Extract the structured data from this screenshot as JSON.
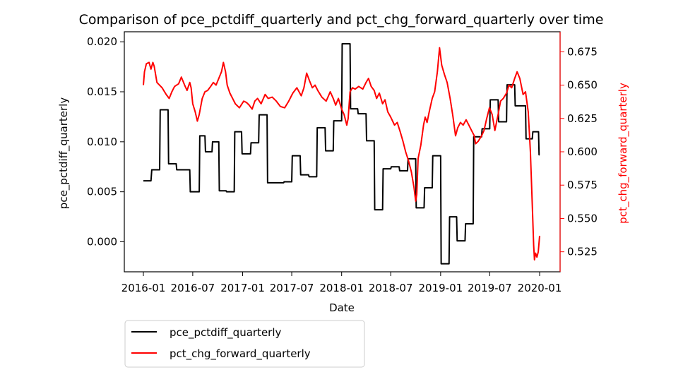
{
  "chart_data": {
    "type": "line",
    "title": "Comparison of pce_pctdiff_quarterly and pct_chg_forward_quarterly over time",
    "xlabel": "Date",
    "ylabel_left": "pce_pctdiff_quarterly",
    "ylabel_right": "pct_chg_forward_quarterly",
    "x_ticks": [
      "2016-01",
      "2016-07",
      "2017-01",
      "2017-07",
      "2018-01",
      "2018-07",
      "2019-01",
      "2019-07",
      "2020-01"
    ],
    "y_left_ticks": [
      "0.000",
      "0.005",
      "0.010",
      "0.015",
      "0.020"
    ],
    "y_right_ticks": [
      "0.525",
      "0.550",
      "0.575",
      "0.600",
      "0.625",
      "0.650",
      "0.675"
    ],
    "y_left_range": [
      -0.003,
      0.021
    ],
    "y_right_range": [
      0.51,
      0.69
    ],
    "legend_position": "below-left",
    "colors": {
      "left": "#000000",
      "right": "#ff0000"
    },
    "series": [
      {
        "name": "pce_pctdiff_quarterly",
        "axis": "left",
        "color": "#000000",
        "points": [
          [
            "2016-01-01",
            0.0061
          ],
          [
            "2016-01-29",
            0.0061
          ],
          [
            "2016-02-01",
            0.0072
          ],
          [
            "2016-03-01",
            0.0072
          ],
          [
            "2016-03-03",
            0.0132
          ],
          [
            "2016-04-01",
            0.0132
          ],
          [
            "2016-04-03",
            0.0078
          ],
          [
            "2016-05-01",
            0.0078
          ],
          [
            "2016-05-03",
            0.0072
          ],
          [
            "2016-06-20",
            0.0072
          ],
          [
            "2016-06-22",
            0.005
          ],
          [
            "2016-07-25",
            0.005
          ],
          [
            "2016-07-27",
            0.0106
          ],
          [
            "2016-08-15",
            0.0106
          ],
          [
            "2016-08-17",
            0.009
          ],
          [
            "2016-09-10",
            0.009
          ],
          [
            "2016-09-12",
            0.01
          ],
          [
            "2016-10-05",
            0.01
          ],
          [
            "2016-10-07",
            0.0051
          ],
          [
            "2016-11-01",
            0.0051
          ],
          [
            "2016-11-03",
            0.005
          ],
          [
            "2016-12-01",
            0.005
          ],
          [
            "2016-12-03",
            0.011
          ],
          [
            "2016-12-28",
            0.011
          ],
          [
            "2016-12-30",
            0.0088
          ],
          [
            "2017-01-30",
            0.0088
          ],
          [
            "2017-02-01",
            0.0099
          ],
          [
            "2017-03-01",
            0.0099
          ],
          [
            "2017-03-03",
            0.0127
          ],
          [
            "2017-04-01",
            0.0127
          ],
          [
            "2017-04-03",
            0.0059
          ],
          [
            "2017-06-01",
            0.0059
          ],
          [
            "2017-06-03",
            0.006
          ],
          [
            "2017-07-01",
            0.006
          ],
          [
            "2017-07-03",
            0.0086
          ],
          [
            "2017-08-01",
            0.0086
          ],
          [
            "2017-08-03",
            0.0067
          ],
          [
            "2017-09-01",
            0.0067
          ],
          [
            "2017-09-03",
            0.0065
          ],
          [
            "2017-10-01",
            0.0065
          ],
          [
            "2017-10-03",
            0.0114
          ],
          [
            "2017-11-01",
            0.0114
          ],
          [
            "2017-11-03",
            0.0091
          ],
          [
            "2017-12-01",
            0.0091
          ],
          [
            "2017-12-03",
            0.0121
          ],
          [
            "2018-01-01",
            0.0121
          ],
          [
            "2018-01-03",
            0.0198
          ],
          [
            "2018-02-01",
            0.0198
          ],
          [
            "2018-02-03",
            0.0133
          ],
          [
            "2018-03-01",
            0.0133
          ],
          [
            "2018-03-03",
            0.0128
          ],
          [
            "2018-04-01",
            0.0128
          ],
          [
            "2018-04-03",
            0.0101
          ],
          [
            "2018-05-01",
            0.0101
          ],
          [
            "2018-05-03",
            0.0032
          ],
          [
            "2018-06-01",
            0.0032
          ],
          [
            "2018-06-03",
            0.0073
          ],
          [
            "2018-07-01",
            0.0073
          ],
          [
            "2018-07-03",
            0.0075
          ],
          [
            "2018-08-01",
            0.0075
          ],
          [
            "2018-08-03",
            0.0071
          ],
          [
            "2018-09-01",
            0.0071
          ],
          [
            "2018-09-03",
            0.0083
          ],
          [
            "2018-10-01",
            0.0083
          ],
          [
            "2018-10-03",
            0.0034
          ],
          [
            "2018-11-01",
            0.0034
          ],
          [
            "2018-11-03",
            0.0054
          ],
          [
            "2018-12-01",
            0.0054
          ],
          [
            "2018-12-03",
            0.0086
          ],
          [
            "2019-01-01",
            0.0086
          ],
          [
            "2019-01-03",
            -0.0022
          ],
          [
            "2019-02-01",
            -0.0022
          ],
          [
            "2019-02-03",
            0.0025
          ],
          [
            "2019-03-01",
            0.0025
          ],
          [
            "2019-03-03",
            0.0001
          ],
          [
            "2019-04-01",
            0.0001
          ],
          [
            "2019-04-03",
            0.0018
          ],
          [
            "2019-05-01",
            0.0018
          ],
          [
            "2019-05-03",
            0.0105
          ],
          [
            "2019-06-01",
            0.0105
          ],
          [
            "2019-06-03",
            0.0113
          ],
          [
            "2019-07-01",
            0.0113
          ],
          [
            "2019-07-03",
            0.0142
          ],
          [
            "2019-08-01",
            0.0142
          ],
          [
            "2019-08-03",
            0.012
          ],
          [
            "2019-09-01",
            0.012
          ],
          [
            "2019-09-03",
            0.0157
          ],
          [
            "2019-10-01",
            0.0157
          ],
          [
            "2019-10-03",
            0.0136
          ],
          [
            "2019-11-10",
            0.0136
          ],
          [
            "2019-11-12",
            0.0103
          ],
          [
            "2019-12-05",
            0.0103
          ],
          [
            "2019-12-07",
            0.011
          ],
          [
            "2019-12-28",
            0.011
          ],
          [
            "2019-12-30",
            0.0087
          ],
          [
            "2020-01-01",
            0.0087
          ]
        ]
      },
      {
        "name": "pct_chg_forward_quarterly",
        "axis": "right",
        "color": "#ff0000",
        "points": [
          [
            "2016-01-01",
            0.65
          ],
          [
            "2016-01-05",
            0.66
          ],
          [
            "2016-01-12",
            0.666
          ],
          [
            "2016-01-22",
            0.667
          ],
          [
            "2016-01-29",
            0.662
          ],
          [
            "2016-02-05",
            0.667
          ],
          [
            "2016-02-10",
            0.664
          ],
          [
            "2016-02-20",
            0.652
          ],
          [
            "2016-03-10",
            0.648
          ],
          [
            "2016-03-25",
            0.643
          ],
          [
            "2016-04-05",
            0.64
          ],
          [
            "2016-04-15",
            0.645
          ],
          [
            "2016-04-25",
            0.649
          ],
          [
            "2016-05-10",
            0.651
          ],
          [
            "2016-05-20",
            0.656
          ],
          [
            "2016-06-01",
            0.65
          ],
          [
            "2016-06-10",
            0.646
          ],
          [
            "2016-06-20",
            0.652
          ],
          [
            "2016-06-25",
            0.648
          ],
          [
            "2016-07-01",
            0.636
          ],
          [
            "2016-07-10",
            0.63
          ],
          [
            "2016-07-18",
            0.623
          ],
          [
            "2016-07-25",
            0.628
          ],
          [
            "2016-08-05",
            0.64
          ],
          [
            "2016-08-15",
            0.645
          ],
          [
            "2016-08-25",
            0.646
          ],
          [
            "2016-09-05",
            0.649
          ],
          [
            "2016-09-15",
            0.652
          ],
          [
            "2016-09-25",
            0.65
          ],
          [
            "2016-10-05",
            0.655
          ],
          [
            "2016-10-15",
            0.66
          ],
          [
            "2016-10-22",
            0.667
          ],
          [
            "2016-10-30",
            0.66
          ],
          [
            "2016-11-05",
            0.65
          ],
          [
            "2016-11-15",
            0.644
          ],
          [
            "2016-11-25",
            0.64
          ],
          [
            "2016-12-05",
            0.636
          ],
          [
            "2016-12-20",
            0.633
          ],
          [
            "2017-01-05",
            0.638
          ],
          [
            "2017-01-15",
            0.637
          ],
          [
            "2017-01-25",
            0.635
          ],
          [
            "2017-02-05",
            0.632
          ],
          [
            "2017-02-15",
            0.638
          ],
          [
            "2017-02-25",
            0.64
          ],
          [
            "2017-03-10",
            0.636
          ],
          [
            "2017-03-25",
            0.643
          ],
          [
            "2017-04-05",
            0.64
          ],
          [
            "2017-04-20",
            0.641
          ],
          [
            "2017-05-05",
            0.638
          ],
          [
            "2017-05-20",
            0.634
          ],
          [
            "2017-06-05",
            0.633
          ],
          [
            "2017-06-20",
            0.638
          ],
          [
            "2017-07-05",
            0.644
          ],
          [
            "2017-07-20",
            0.648
          ],
          [
            "2017-08-05",
            0.642
          ],
          [
            "2017-08-15",
            0.648
          ],
          [
            "2017-08-25",
            0.659
          ],
          [
            "2017-09-05",
            0.653
          ],
          [
            "2017-09-15",
            0.648
          ],
          [
            "2017-09-25",
            0.65
          ],
          [
            "2017-10-05",
            0.646
          ],
          [
            "2017-10-20",
            0.641
          ],
          [
            "2017-11-05",
            0.638
          ],
          [
            "2017-11-20",
            0.645
          ],
          [
            "2017-12-01",
            0.64
          ],
          [
            "2017-12-10",
            0.635
          ],
          [
            "2017-12-20",
            0.64
          ],
          [
            "2018-01-01",
            0.632
          ],
          [
            "2018-01-10",
            0.628
          ],
          [
            "2018-01-20",
            0.62
          ],
          [
            "2018-01-25",
            0.625
          ],
          [
            "2018-02-01",
            0.645
          ],
          [
            "2018-02-10",
            0.648
          ],
          [
            "2018-02-20",
            0.647
          ],
          [
            "2018-03-05",
            0.649
          ],
          [
            "2018-03-20",
            0.647
          ],
          [
            "2018-04-01",
            0.652
          ],
          [
            "2018-04-10",
            0.655
          ],
          [
            "2018-04-20",
            0.649
          ],
          [
            "2018-05-01",
            0.646
          ],
          [
            "2018-05-10",
            0.64
          ],
          [
            "2018-05-20",
            0.644
          ],
          [
            "2018-06-01",
            0.636
          ],
          [
            "2018-06-10",
            0.639
          ],
          [
            "2018-06-20",
            0.63
          ],
          [
            "2018-07-01",
            0.626
          ],
          [
            "2018-07-15",
            0.62
          ],
          [
            "2018-07-25",
            0.622
          ],
          [
            "2018-08-05",
            0.615
          ],
          [
            "2018-08-15",
            0.608
          ],
          [
            "2018-08-25",
            0.6
          ],
          [
            "2018-09-05",
            0.593
          ],
          [
            "2018-09-15",
            0.585
          ],
          [
            "2018-09-25",
            0.573
          ],
          [
            "2018-10-01",
            0.563
          ],
          [
            "2018-10-05",
            0.568
          ],
          [
            "2018-10-10",
            0.595
          ],
          [
            "2018-10-20",
            0.605
          ],
          [
            "2018-10-30",
            0.62
          ],
          [
            "2018-11-05",
            0.626
          ],
          [
            "2018-11-12",
            0.622
          ],
          [
            "2018-11-20",
            0.63
          ],
          [
            "2018-12-01",
            0.64
          ],
          [
            "2018-12-10",
            0.645
          ],
          [
            "2018-12-20",
            0.66
          ],
          [
            "2018-12-28",
            0.678
          ],
          [
            "2019-01-05",
            0.665
          ],
          [
            "2019-01-15",
            0.658
          ],
          [
            "2019-01-25",
            0.652
          ],
          [
            "2019-02-05",
            0.64
          ],
          [
            "2019-02-15",
            0.627
          ],
          [
            "2019-02-25",
            0.612
          ],
          [
            "2019-03-05",
            0.618
          ],
          [
            "2019-03-15",
            0.622
          ],
          [
            "2019-03-25",
            0.62
          ],
          [
            "2019-04-05",
            0.624
          ],
          [
            "2019-04-15",
            0.62
          ],
          [
            "2019-04-25",
            0.616
          ],
          [
            "2019-05-05",
            0.612
          ],
          [
            "2019-05-10",
            0.606
          ],
          [
            "2019-05-20",
            0.608
          ],
          [
            "2019-06-01",
            0.612
          ],
          [
            "2019-06-10",
            0.616
          ],
          [
            "2019-06-20",
            0.625
          ],
          [
            "2019-06-30",
            0.633
          ],
          [
            "2019-07-10",
            0.628
          ],
          [
            "2019-07-20",
            0.616
          ],
          [
            "2019-08-01",
            0.628
          ],
          [
            "2019-08-10",
            0.638
          ],
          [
            "2019-08-20",
            0.64
          ],
          [
            "2019-09-01",
            0.644
          ],
          [
            "2019-09-10",
            0.65
          ],
          [
            "2019-09-20",
            0.648
          ],
          [
            "2019-10-01",
            0.655
          ],
          [
            "2019-10-10",
            0.66
          ],
          [
            "2019-10-20",
            0.655
          ],
          [
            "2019-11-01",
            0.643
          ],
          [
            "2019-11-10",
            0.645
          ],
          [
            "2019-11-20",
            0.63
          ],
          [
            "2019-11-28",
            0.6
          ],
          [
            "2019-12-05",
            0.56
          ],
          [
            "2019-12-10",
            0.53
          ],
          [
            "2019-12-13",
            0.519
          ],
          [
            "2019-12-17",
            0.524
          ],
          [
            "2019-12-22",
            0.521
          ],
          [
            "2019-12-27",
            0.525
          ],
          [
            "2020-01-01",
            0.537
          ]
        ]
      }
    ]
  }
}
